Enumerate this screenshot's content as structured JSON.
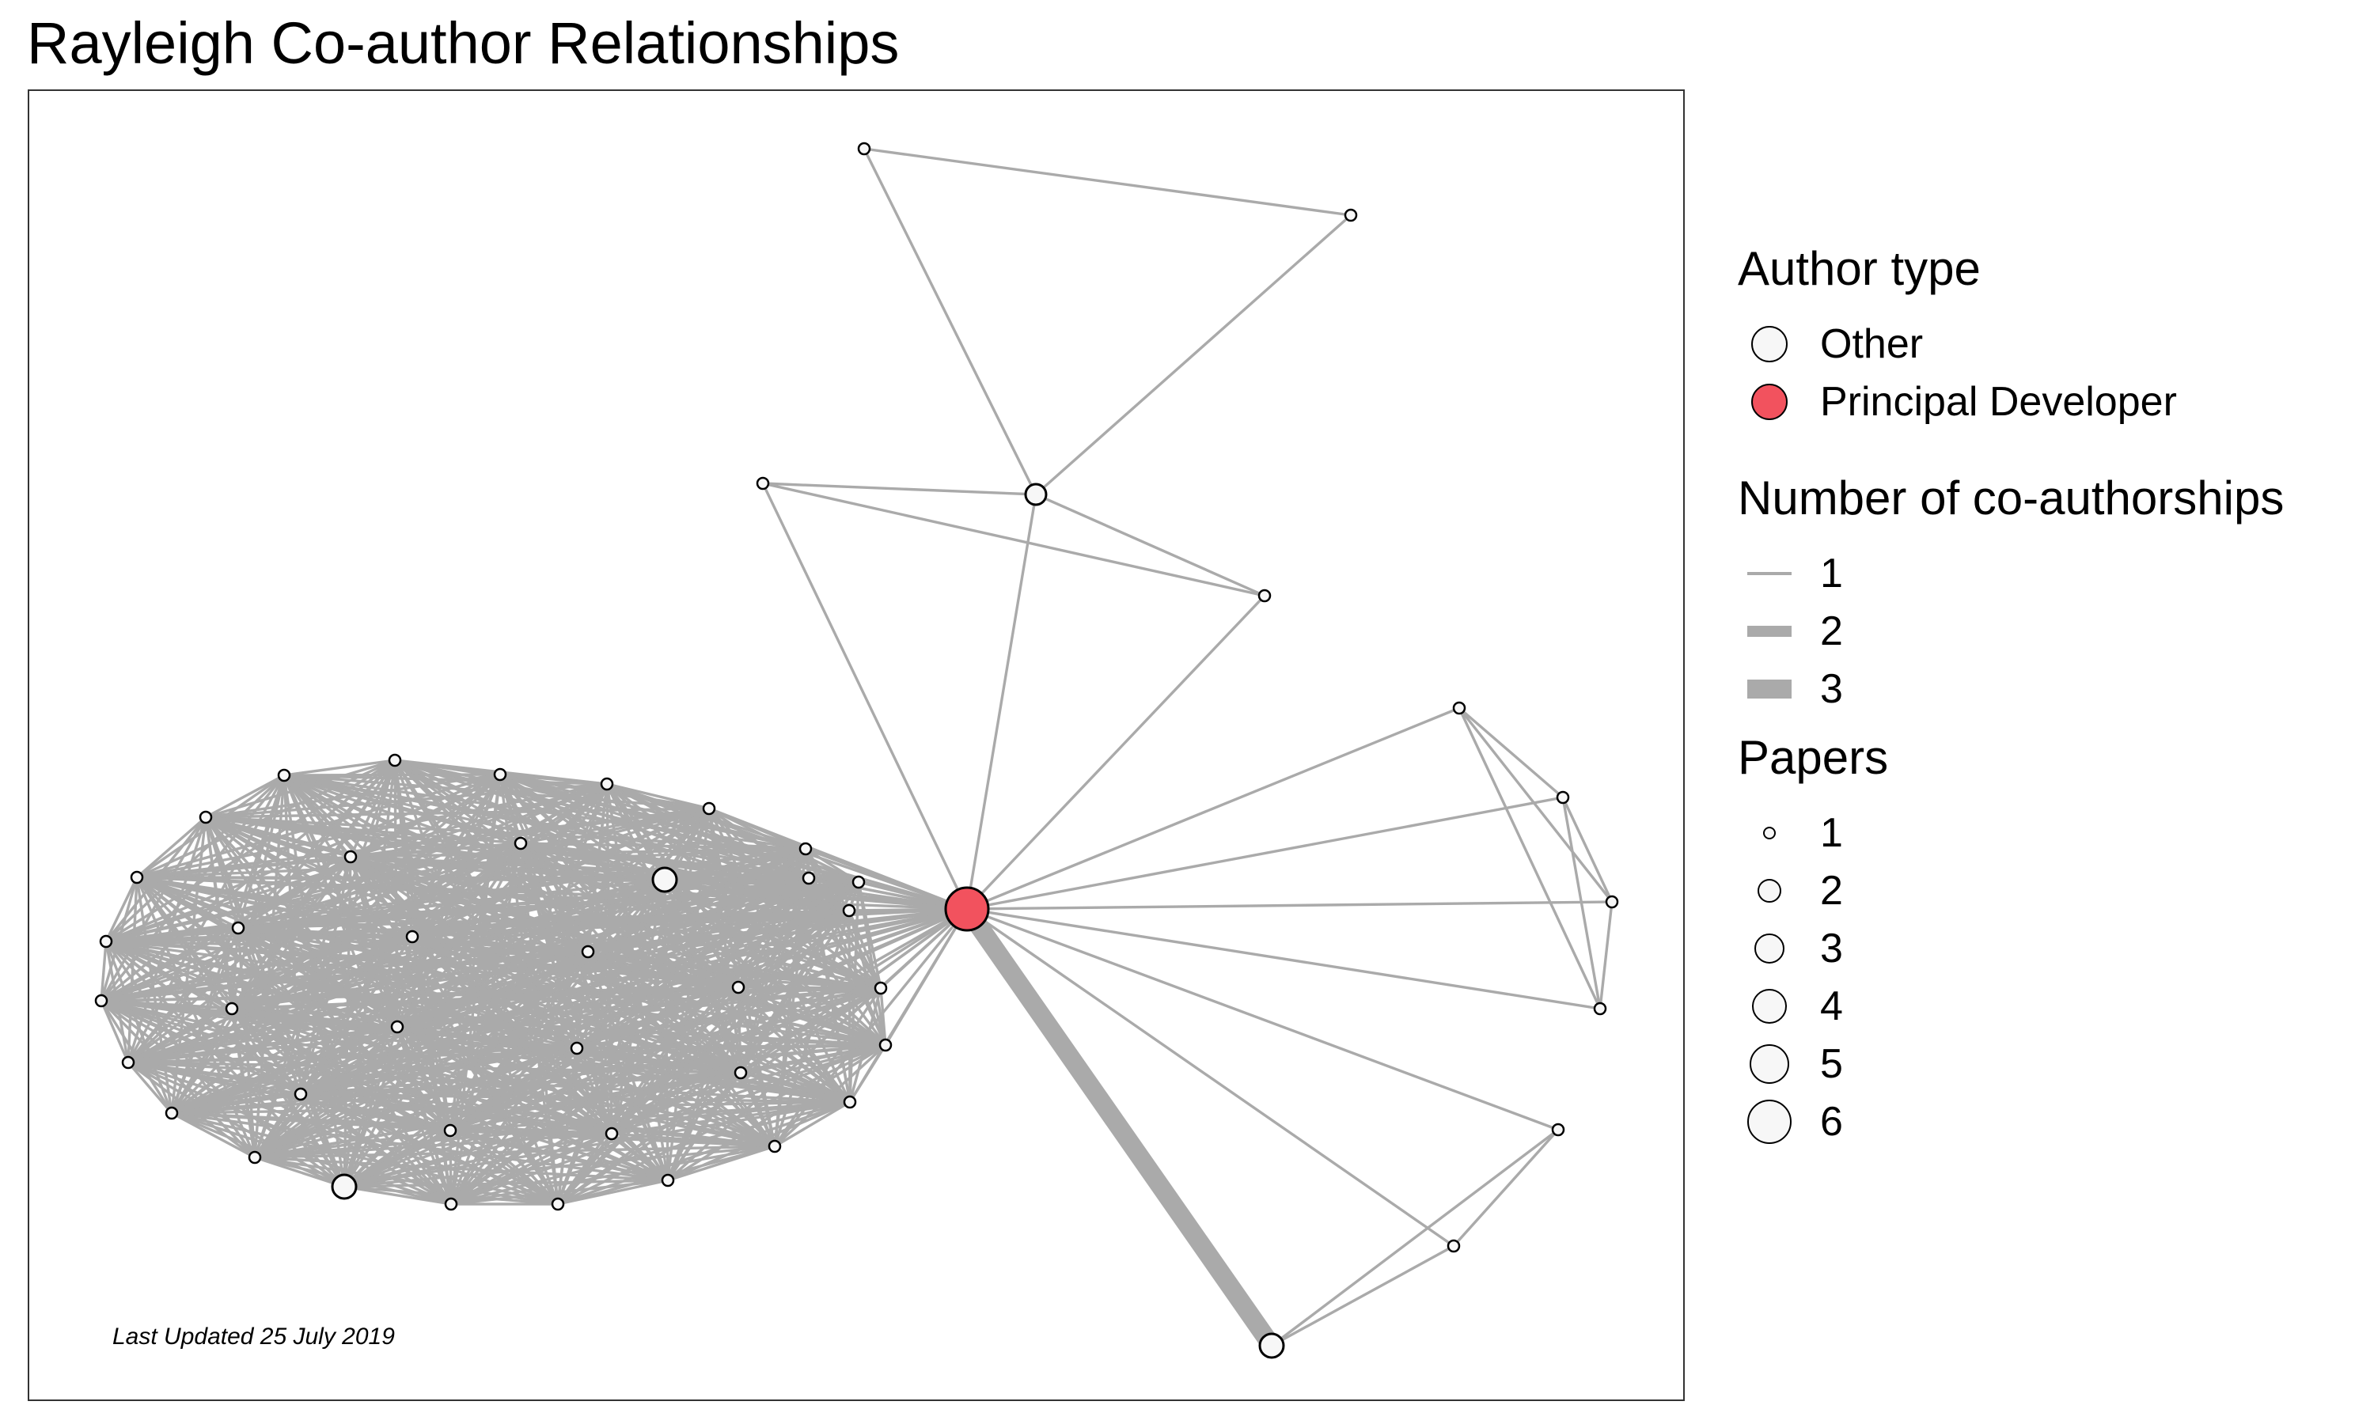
{
  "title": "Rayleigh Co-author Relationships",
  "annotation": "Last Updated 25 July 2019",
  "colors": {
    "principal": "#f2525e",
    "other": "#f7f7f7",
    "edge": "#aaaaaa",
    "outline": "#000000"
  },
  "legend": {
    "author_type": {
      "title": "Author type",
      "items": [
        {
          "label": "Other",
          "color": "#f7f7f7"
        },
        {
          "label": "Principal Developer",
          "color": "#f2525e"
        }
      ]
    },
    "coauthorships": {
      "title": "Number of co-authorships",
      "items": [
        {
          "label": "1",
          "value": 1
        },
        {
          "label": "2",
          "value": 2
        },
        {
          "label": "3",
          "value": 3
        }
      ]
    },
    "papers": {
      "title": "Papers",
      "items": [
        {
          "label": "1",
          "value": 1
        },
        {
          "label": "2",
          "value": 2
        },
        {
          "label": "3",
          "value": 3
        },
        {
          "label": "4",
          "value": 4
        },
        {
          "label": "5",
          "value": 5
        },
        {
          "label": "6",
          "value": 6
        }
      ]
    }
  }
}
